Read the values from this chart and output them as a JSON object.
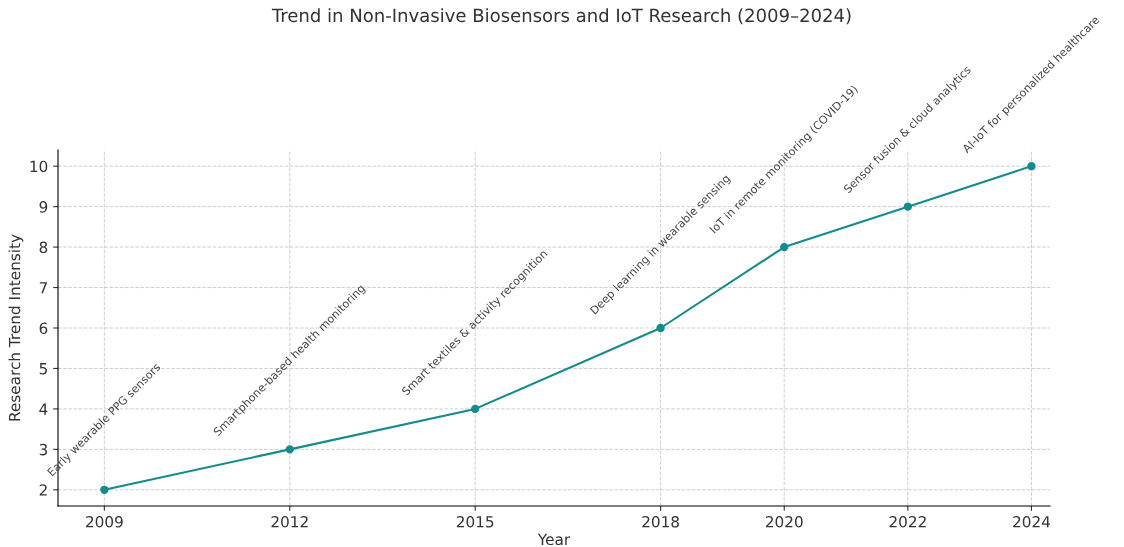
{
  "chart_data": {
    "type": "line",
    "title": "Trend in Non-Invasive Biosensors and IoT Research (2009–2024)",
    "xlabel": "Year",
    "ylabel": "Research Trend Intensity",
    "x": [
      2009,
      2012,
      2015,
      2018,
      2020,
      2022,
      2024
    ],
    "series": [
      {
        "color": "#168b8b",
        "values": [
          2,
          3,
          4,
          6,
          8,
          9,
          10
        ]
      }
    ],
    "xlim": [
      2008.25,
      2024.3
    ],
    "xticks": [
      2009,
      2012,
      2015,
      2018,
      2020,
      2022,
      2024
    ],
    "ylim": [
      1.6,
      10.4
    ],
    "yticks": [
      2,
      3,
      4,
      5,
      6,
      7,
      8,
      9,
      10
    ],
    "grid": true,
    "marker": "circle",
    "line_style": "solid",
    "annotations": [
      {
        "text": "Early wearable PPG sensors",
        "x": 2009,
        "y": 2
      },
      {
        "text": "Smartphone-based health monitoring",
        "x": 2012,
        "y": 3
      },
      {
        "text": "Smart textiles & activity recognition",
        "x": 2015,
        "y": 4
      },
      {
        "text": "Deep learning in wearable sensing",
        "x": 2018,
        "y": 6
      },
      {
        "text": "IoT in remote monitoring (COVID-19)",
        "x": 2020,
        "y": 8
      },
      {
        "text": "Sensor fusion & cloud analytics",
        "x": 2022,
        "y": 9
      },
      {
        "text": "AI-IoT for personalized healthcare",
        "x": 2024,
        "y": 10
      }
    ]
  }
}
